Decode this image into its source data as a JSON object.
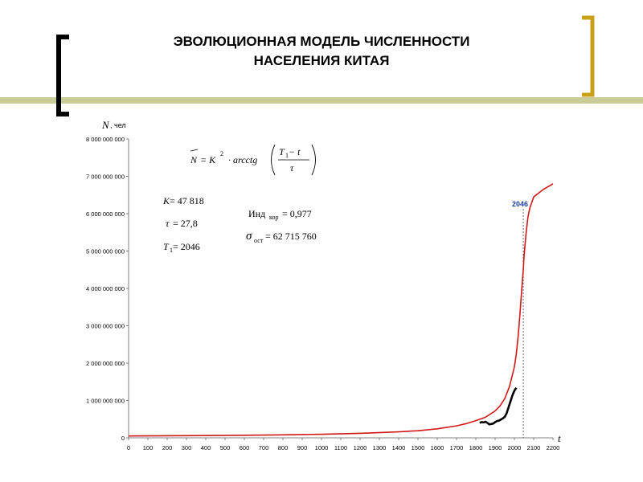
{
  "slide": {
    "title_line1": "ЭВОЛЮЦИОННАЯ МОДЕЛЬ ЧИСЛЕННОСТИ",
    "title_line2": "НАСЕЛЕНИЯ КИТАЯ",
    "bracket_left_color": "#000000",
    "bracket_right_color": "#c8a018",
    "bar_color": "#c9cc96"
  },
  "chart_data": {
    "type": "line",
    "title": "",
    "ylabel": "N",
    "ylabel_unit": ", чел",
    "xlabel": "t",
    "xlim": [
      0,
      2200
    ],
    "ylim": [
      0,
      8000000000
    ],
    "x_ticks": [
      0,
      100,
      200,
      300,
      400,
      500,
      600,
      700,
      800,
      900,
      1000,
      1100,
      1200,
      1300,
      1400,
      1500,
      1600,
      1700,
      1800,
      1900,
      2000,
      2100,
      2200
    ],
    "y_ticks": [
      0,
      1000000000,
      2000000000,
      3000000000,
      4000000000,
      5000000000,
      6000000000,
      7000000000,
      8000000000
    ],
    "y_tick_labels": [
      "0",
      "1 000 000 000",
      "2 000 000 000",
      "3 000 000 000",
      "4 000 000 000",
      "5 000 000 000",
      "6 000 000 000",
      "7 000 000 000",
      "8 000 000 000"
    ],
    "grid": false,
    "series": [
      {
        "kind": "model",
        "color": "#d01818",
        "x": [
          0,
          200,
          400,
          600,
          800,
          1000,
          1200,
          1400,
          1500,
          1600,
          1700,
          1750,
          1800,
          1850,
          1900,
          1925,
          1950,
          1975,
          2000,
          2010,
          2020,
          2030,
          2040,
          2046,
          2050,
          2060,
          2070,
          2080,
          2100,
          2150,
          2200
        ],
        "y": [
          50000000,
          55000000,
          61000000,
          69000000,
          79000000,
          95000000,
          120000000,
          160000000,
          190000000,
          240000000,
          320000000,
          380000000,
          460000000,
          550000000,
          720000000,
          850000000,
          1050000000,
          1380000000,
          1900000000,
          2250000000,
          2750000000,
          3400000000,
          4100000000,
          4500000000,
          4850000000,
          5450000000,
          5900000000,
          6150000000,
          6450000000,
          6650000000,
          6800000000
        ]
      },
      {
        "kind": "observed",
        "color": "#000000",
        "x": [
          1820,
          1830,
          1840,
          1850,
          1860,
          1870,
          1880,
          1890,
          1900,
          1910,
          1920,
          1930,
          1940,
          1950,
          1960,
          1970,
          1980,
          1990,
          2000,
          2010
        ],
        "y": [
          400000000,
          420000000,
          412000000,
          430000000,
          400000000,
          360000000,
          370000000,
          380000000,
          420000000,
          450000000,
          460000000,
          490000000,
          520000000,
          560000000,
          660000000,
          820000000,
          980000000,
          1140000000,
          1260000000,
          1340000000
        ]
      }
    ],
    "marker": {
      "x": 2046,
      "label": "2046",
      "color": "#1f3f9c"
    },
    "formula": {
      "lhs": "N",
      "equals_k": "= K",
      "k_exp": "2",
      "dot_func": "· arcctg",
      "numerator": "T",
      "numerator_sub": "1",
      "numerator_rest": " − t",
      "denominator": "τ"
    },
    "params": {
      "k_sym": "K",
      "k_val": " = 47 818",
      "tau_sym": "τ",
      "tau_val": " = 27,8",
      "t1_sym": "T",
      "t1_sub": "1",
      "t1_val": " = 2046",
      "ind_label": "Инд",
      "ind_sub": "кор",
      "ind_val": " = 0,977",
      "sigma_sym": "σ",
      "sigma_sub": "ост",
      "sigma_val": " = 62 715 760"
    }
  }
}
